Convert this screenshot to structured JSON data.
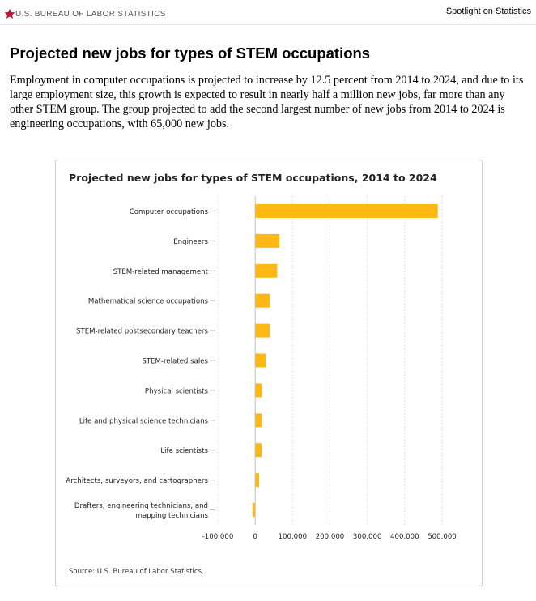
{
  "header": {
    "logo_text": "U.S. BUREAU OF LABOR STATISTICS",
    "series_name": "Spotlight on Statistics"
  },
  "page": {
    "title": "Projected new jobs for types of STEM occupations",
    "intro": "Employment in computer occupations is projected to increase by 12.5 percent from 2014 to 2024, and due to its large employment size, this growth is expected to result in nearly half a million new jobs, far more than any other STEM group. The group projected to add the second largest number of new jobs from 2014 to 2024 is engineering occupations, with 65,000 new jobs."
  },
  "colors": {
    "bar": "#FDB813",
    "logo_star": "#C8102E",
    "gridline": "#d9d9d9"
  },
  "chart_data": {
    "type": "bar",
    "orientation": "horizontal",
    "title": "Projected new jobs for types of STEM occupations, 2014 to 2024",
    "categories": [
      [
        "Computer occupations"
      ],
      [
        "Engineers"
      ],
      [
        "STEM-related management"
      ],
      [
        "Mathematical science occupations"
      ],
      [
        "STEM-related postsecondary teachers"
      ],
      [
        "STEM-related sales"
      ],
      [
        "Physical scientists"
      ],
      [
        "Life and physical science technicians"
      ],
      [
        "Life scientists"
      ],
      [
        "Architects, surveyors, and cartographers"
      ],
      [
        "Drafters, engineering technicians, and",
        "mapping technicians"
      ]
    ],
    "values": [
      488500,
      65000,
      59000,
      39500,
      38500,
      28000,
      18000,
      17500,
      17000,
      10500,
      -7500
    ],
    "xlim": [
      -100000,
      500000
    ],
    "xticks": [
      -100000,
      0,
      100000,
      200000,
      300000,
      400000,
      500000
    ],
    "xtick_labels": [
      "-100,000",
      "0",
      "100,000",
      "200,000",
      "300,000",
      "400,000",
      "500,000"
    ],
    "grid": "vertical dotted",
    "source": "Source: U.S. Bureau of Labor Statistics."
  }
}
